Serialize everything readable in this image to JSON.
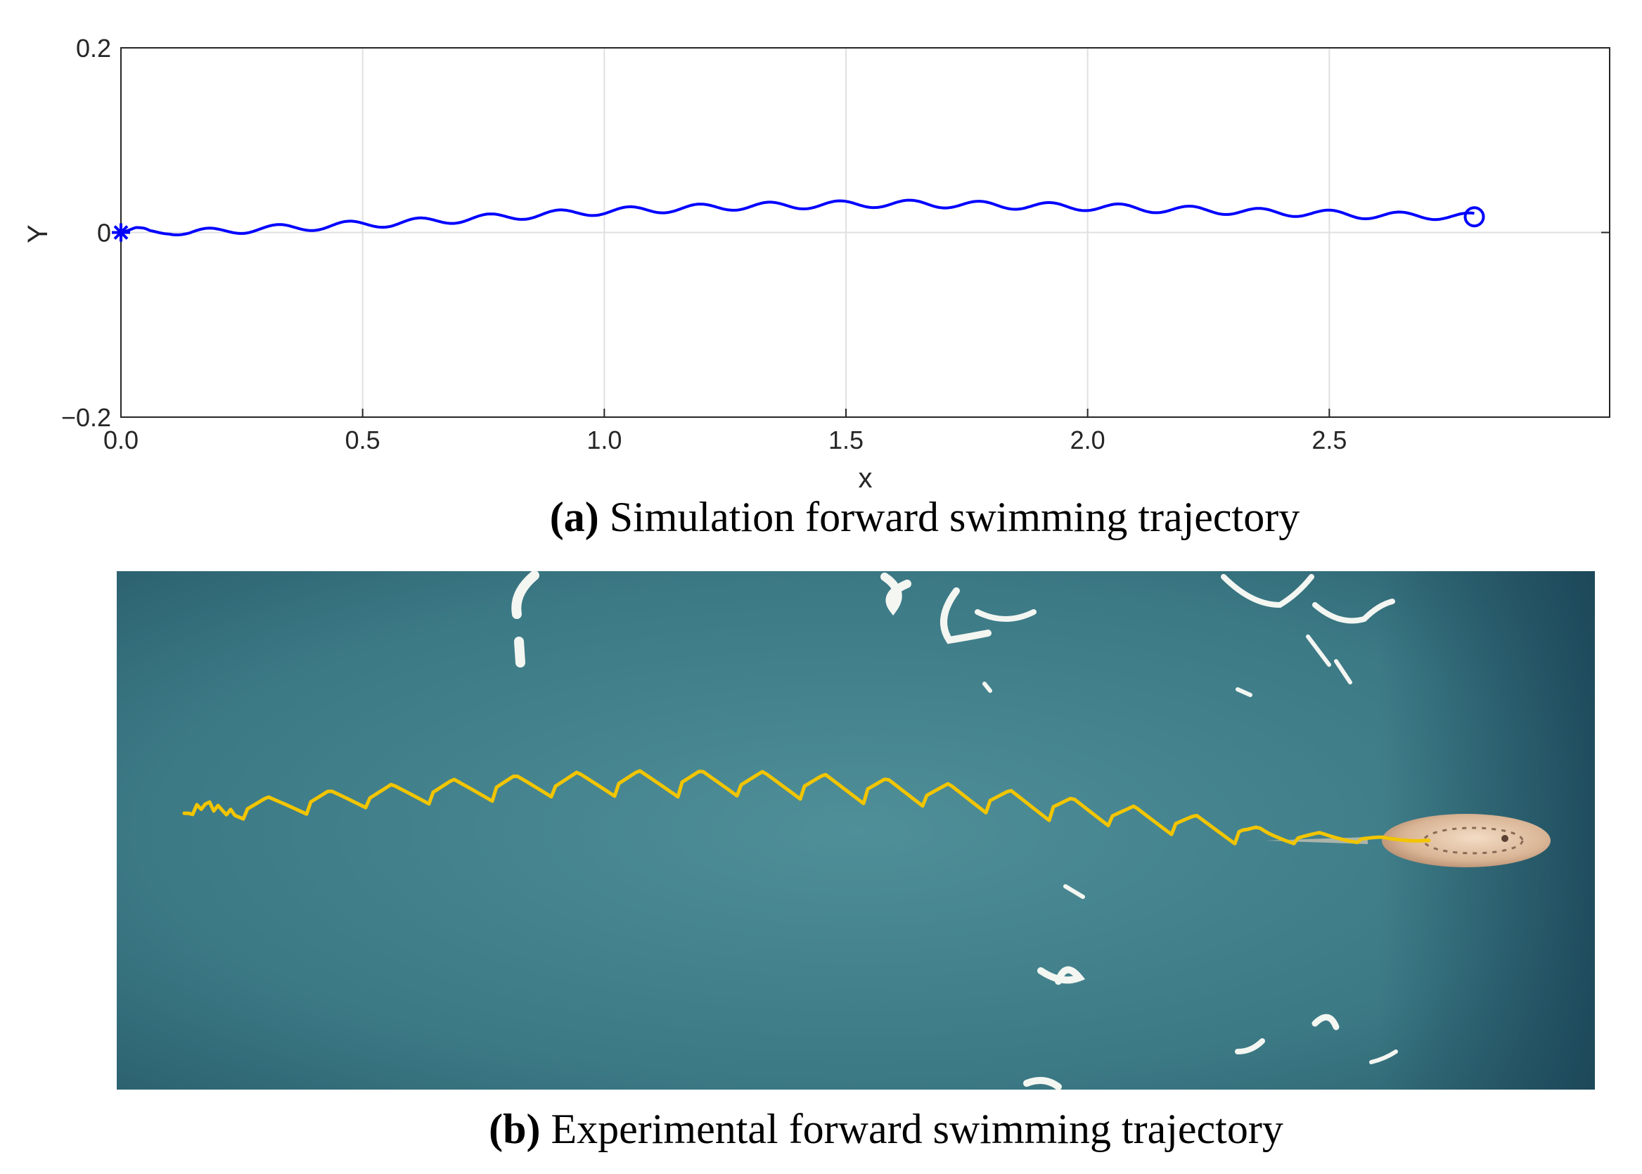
{
  "chart_data": [
    {
      "type": "line",
      "title": "",
      "xlabel": "x",
      "ylabel": "Y",
      "xlim": [
        0,
        3.08
      ],
      "ylim": [
        -0.2,
        0.2
      ],
      "xticks": [
        0,
        0.5,
        1.0,
        1.5,
        2.0,
        2.5
      ],
      "xtick_labels": [
        "0.0",
        "0.5",
        "1.0",
        "1.5",
        "2.0",
        "2.5"
      ],
      "yticks": [
        -0.2,
        0,
        0.2
      ],
      "ytick_labels": [
        "−0.2",
        "0",
        "0.2"
      ],
      "grid": true,
      "series": [
        {
          "name": "trajectory",
          "color": "#0000ff",
          "x": [
            0.0,
            0.03,
            0.06,
            0.1,
            0.14,
            0.2,
            0.28,
            0.36,
            0.46,
            0.56,
            0.66,
            0.76,
            0.86,
            0.96,
            1.06,
            1.16,
            1.26,
            1.36,
            1.46,
            1.56,
            1.66,
            1.76,
            1.86,
            1.96,
            2.06,
            2.16,
            2.26,
            2.36,
            2.46,
            2.56,
            2.66,
            2.74,
            2.8
          ],
          "y": [
            0.0,
            0.003,
            0.0,
            0.002,
            0.0,
            0.001,
            0.004,
            0.005,
            0.008,
            0.01,
            0.013,
            0.016,
            0.019,
            0.022,
            0.024,
            0.026,
            0.028,
            0.029,
            0.03,
            0.031,
            0.031,
            0.03,
            0.029,
            0.028,
            0.027,
            0.025,
            0.024,
            0.022,
            0.021,
            0.019,
            0.018,
            0.018,
            0.017
          ],
          "wiggle_amplitude": 0.004,
          "wiggle_period": 0.145,
          "start_marker": "asterisk",
          "end_marker": "circle"
        }
      ]
    },
    {
      "type": "image",
      "title": "",
      "trajectory_color": "#f2c500",
      "water_color": "#3d7c88"
    }
  ],
  "captions": {
    "a": {
      "label": "(a)",
      "text": " Simulation forward swimming trajectory"
    },
    "b": {
      "label": "(b)",
      "text": " Experimental forward swimming trajectory"
    }
  }
}
